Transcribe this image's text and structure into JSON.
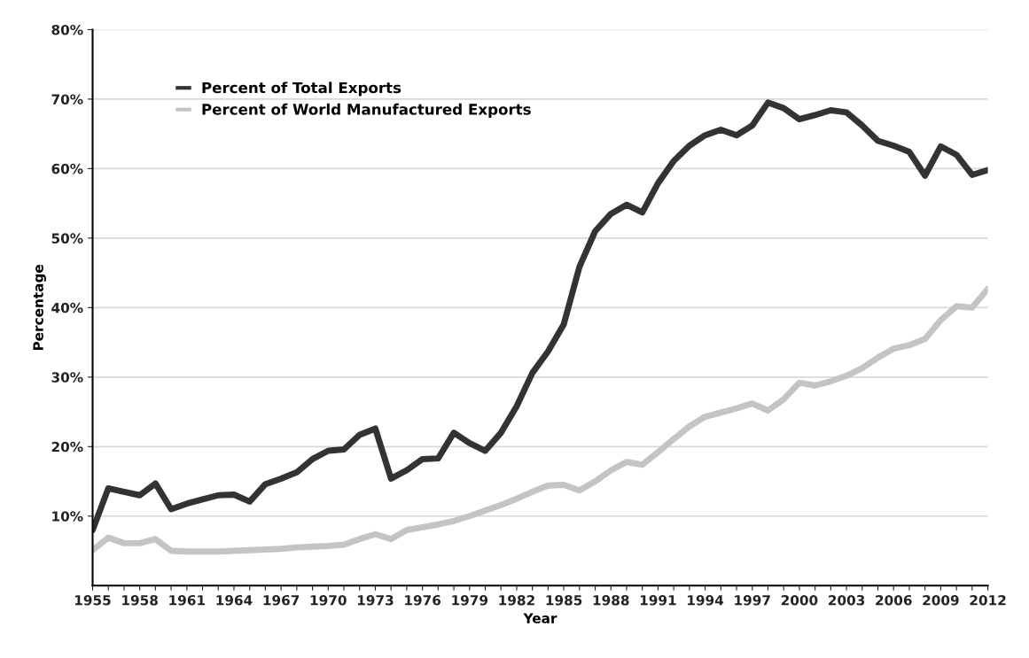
{
  "chart_data": {
    "type": "line",
    "xlabel": "Year",
    "ylabel": "Percentage",
    "x": [
      1955,
      1956,
      1957,
      1958,
      1959,
      1960,
      1961,
      1962,
      1963,
      1964,
      1965,
      1966,
      1967,
      1968,
      1969,
      1970,
      1971,
      1972,
      1973,
      1974,
      1975,
      1976,
      1977,
      1978,
      1979,
      1980,
      1981,
      1982,
      1983,
      1984,
      1985,
      1986,
      1987,
      1988,
      1989,
      1990,
      1991,
      1992,
      1993,
      1994,
      1995,
      1996,
      1997,
      1998,
      1999,
      2000,
      2001,
      2002,
      2003,
      2004,
      2005,
      2006,
      2007,
      2008,
      2009,
      2010,
      2011,
      2012
    ],
    "series": [
      {
        "name": "Percent of Total Exports",
        "color": "#333333",
        "values": [
          8.0,
          14.0,
          13.5,
          13.0,
          14.7,
          11.0,
          11.8,
          12.4,
          13.0,
          13.1,
          12.1,
          14.6,
          15.4,
          16.3,
          18.2,
          19.4,
          19.6,
          21.7,
          22.6,
          15.4,
          16.6,
          18.2,
          18.3,
          22.0,
          20.5,
          19.4,
          22.0,
          25.8,
          30.6,
          33.7,
          37.6,
          45.9,
          51.0,
          53.5,
          54.8,
          53.7,
          57.9,
          61.1,
          63.3,
          64.8,
          65.6,
          64.8,
          66.2,
          69.5,
          68.7,
          67.1,
          67.7,
          68.4,
          68.1,
          66.2,
          64.0,
          63.3,
          62.4,
          59.0,
          63.2,
          62.0,
          59.1,
          59.8
        ]
      },
      {
        "name": "Percent of World Manufactured Exports",
        "color": "#c4c4c4",
        "values": [
          5.1,
          6.9,
          6.1,
          6.1,
          6.7,
          5.0,
          4.9,
          4.9,
          4.9,
          5.0,
          5.1,
          5.2,
          5.3,
          5.5,
          5.6,
          5.7,
          5.9,
          6.7,
          7.4,
          6.7,
          8.0,
          8.4,
          8.8,
          9.3,
          10.0,
          10.8,
          11.6,
          12.5,
          13.5,
          14.4,
          14.5,
          13.7,
          15.0,
          16.6,
          17.8,
          17.4,
          19.2,
          21.1,
          22.9,
          24.3,
          24.9,
          25.5,
          26.2,
          25.2,
          26.8,
          29.2,
          28.8,
          29.4,
          30.2,
          31.3,
          32.8,
          34.1,
          34.6,
          35.5,
          38.2,
          40.2,
          40.0,
          42.7
        ]
      }
    ],
    "xlim": [
      1955,
      2012
    ],
    "xticks": [
      1955,
      {
        "value": 1956,
        "label": null
      },
      {
        "value": 1957,
        "label": null
      },
      1958,
      {
        "value": 1959,
        "label": null
      },
      {
        "value": 1960,
        "label": null
      },
      1961,
      {
        "value": 1962,
        "label": null
      },
      {
        "value": 1963,
        "label": null
      },
      1964,
      {
        "value": 1965,
        "label": null
      },
      {
        "value": 1966,
        "label": null
      },
      1967,
      {
        "value": 1968,
        "label": null
      },
      {
        "value": 1969,
        "label": null
      },
      1970,
      {
        "value": 1971,
        "label": null
      },
      {
        "value": 1972,
        "label": null
      },
      1973,
      {
        "value": 1974,
        "label": null
      },
      {
        "value": 1975,
        "label": null
      },
      1976,
      {
        "value": 1977,
        "label": null
      },
      {
        "value": 1978,
        "label": null
      },
      1979,
      {
        "value": 1980,
        "label": null
      },
      {
        "value": 1981,
        "label": null
      },
      1982,
      {
        "value": 1983,
        "label": null
      },
      {
        "value": 1984,
        "label": null
      },
      1985,
      {
        "value": 1986,
        "label": null
      },
      {
        "value": 1987,
        "label": null
      },
      1988,
      {
        "value": 1989,
        "label": null
      },
      {
        "value": 1990,
        "label": null
      },
      1991,
      {
        "value": 1992,
        "label": null
      },
      {
        "value": 1993,
        "label": null
      },
      1994,
      {
        "value": 1995,
        "label": null
      },
      {
        "value": 1996,
        "label": null
      },
      1997,
      {
        "value": 1998,
        "label": null
      },
      {
        "value": 1999,
        "label": null
      },
      2000,
      {
        "value": 2001,
        "label": null
      },
      {
        "value": 2002,
        "label": null
      },
      2003,
      {
        "value": 2004,
        "label": null
      },
      {
        "value": 2005,
        "label": null
      },
      2006,
      {
        "value": 2007,
        "label": null
      },
      {
        "value": 2008,
        "label": null
      },
      2009,
      {
        "value": 2010,
        "label": null
      },
      {
        "value": 2011,
        "label": null
      },
      2012
    ],
    "ylim": [
      0,
      80
    ],
    "yticks": [
      {
        "value": 10,
        "label": "10%"
      },
      {
        "value": 20,
        "label": "20%"
      },
      {
        "value": 30,
        "label": "30%"
      },
      {
        "value": 40,
        "label": "40%"
      },
      {
        "value": 50,
        "label": "50%"
      },
      {
        "value": 60,
        "label": "60%"
      },
      {
        "value": 70,
        "label": "70%"
      },
      {
        "value": 80,
        "label": "80%"
      }
    ],
    "grid": "y",
    "legend": "top left",
    "line_style": "solid",
    "marker": "none"
  }
}
